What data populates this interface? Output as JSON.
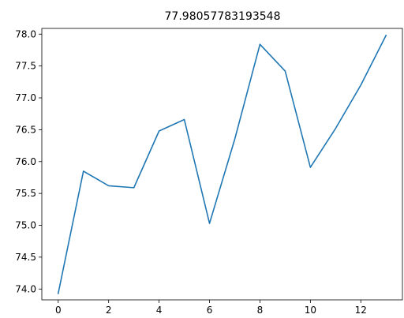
{
  "chart_data": {
    "type": "line",
    "title": "77.98057783193548",
    "xlabel": "",
    "ylabel": "",
    "x": [
      0,
      1,
      2,
      3,
      4,
      5,
      6,
      7,
      8,
      9,
      10,
      11,
      12,
      13
    ],
    "series": [
      {
        "values": [
          73.93,
          75.85,
          75.62,
          75.59,
          76.48,
          76.66,
          75.03,
          76.35,
          77.84,
          77.42,
          75.91,
          76.52,
          77.2,
          77.98
        ],
        "color": "#1f77b4"
      }
    ],
    "xlim": [
      -0.65,
      13.65
    ],
    "ylim": [
      73.83,
      78.09
    ],
    "xticks": [
      0,
      2,
      4,
      6,
      8,
      10,
      12
    ],
    "xtick_labels": [
      "0",
      "2",
      "4",
      "6",
      "8",
      "10",
      "12"
    ],
    "yticks": [
      74.0,
      74.5,
      75.0,
      75.5,
      76.0,
      76.5,
      77.0,
      77.5,
      78.0
    ],
    "ytick_labels": [
      "74.0",
      "74.5",
      "75.0",
      "75.5",
      "76.0",
      "76.5",
      "77.0",
      "77.5",
      "78.0"
    ],
    "grid": false,
    "legend": "none"
  }
}
